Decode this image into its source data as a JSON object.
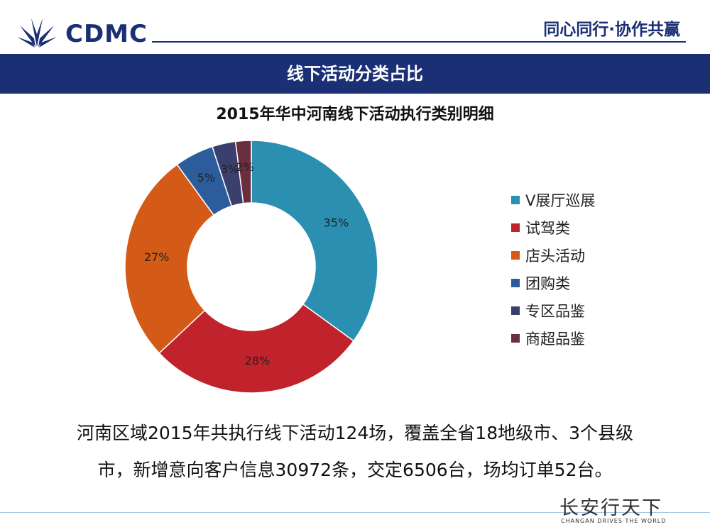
{
  "header": {
    "logo_text": "CDMC",
    "slogan": "同心同行·协作共赢"
  },
  "banner": {
    "title": "线下活动分类占比"
  },
  "chart_data": {
    "type": "pie",
    "style": "donut",
    "title": "2015年华中河南线下活动执行类别明细",
    "legend_position": "right",
    "slices": [
      {
        "label": "V展厅巡展",
        "value": 35,
        "display": "35%",
        "color": "#2a8fb0"
      },
      {
        "label": "试驾类",
        "value": 28,
        "display": "28%",
        "color": "#c0232b"
      },
      {
        "label": "店头活动",
        "value": 27,
        "display": "27%",
        "color": "#d45a17"
      },
      {
        "label": "团购类",
        "value": 5,
        "display": "5%",
        "color": "#2c5c9c"
      },
      {
        "label": "专区品鉴",
        "value": 3,
        "display": "3%",
        "color": "#3a3f6e"
      },
      {
        "label": "商超品鉴",
        "value": 2,
        "display": "2%",
        "color": "#6b2e3f"
      }
    ]
  },
  "summary": {
    "line1": "河南区域2015年共执行线下活动124场，覆盖全省18地级市、3个县级",
    "line2": "市，新增意向客户信息30972条，交定6506台，场均订单52台。"
  },
  "footer": {
    "brand_main": "长安行天下",
    "brand_sub": "CHANGAN DRIVES THE WORLD"
  }
}
